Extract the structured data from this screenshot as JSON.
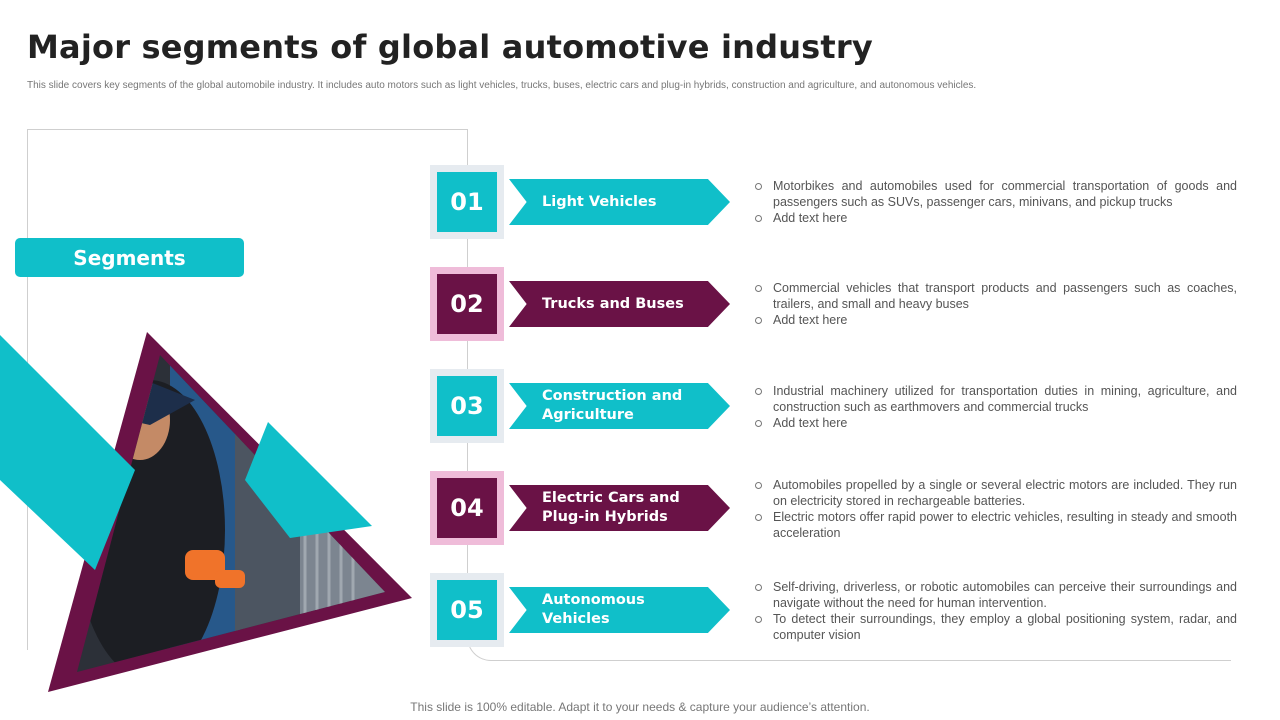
{
  "header": {
    "title": "Major segments of global automotive industry",
    "subtitle": "This slide covers key segments of the global automobile  industry. It includes auto motors such as light  vehicles, trucks, buses, electric cars and plug-in hybrids, construction and agriculture, and autonomous  vehicles."
  },
  "segments_label": "Segments",
  "colors": {
    "teal": "#10bfc9",
    "purple": "#6a1246",
    "pink": "#efbcd9",
    "light": "#e6ebf0"
  },
  "items": [
    {
      "num": "01",
      "label": "Light Vehicles",
      "color": "teal",
      "points": [
        "Motorbikes and automobiles used for commercial transportation of goods and passengers such as SUVs, passenger cars, minivans,  and pickup trucks",
        "Add text here"
      ]
    },
    {
      "num": "02",
      "label": "Trucks and Buses",
      "color": "purple",
      "points": [
        "Commercial vehicles that transport products and passengers such as coaches, trailers,  and  small and heavy  buses",
        "Add text here"
      ]
    },
    {
      "num": "03",
      "label": "Construction and Agriculture",
      "color": "teal",
      "points": [
        "Industrial machinery utilized for transportation duties in mining, agriculture, and construction such as earthmovers  and commercial trucks",
        "Add text here"
      ]
    },
    {
      "num": "04",
      "label": "Electric Cars and Plug-in Hybrids",
      "color": "purple",
      "points": [
        "Automobiles propelled  by a single  or several  electric motors are included. They run on electricity stored in rechargeable  batteries.",
        "Electric motors offer rapid power to electric vehicles,  resulting in steady and smooth acceleration"
      ]
    },
    {
      "num": "05",
      "label": "Autonomous Vehicles",
      "color": "teal",
      "points": [
        "Self-driving,  driverless,  or robotic automobiles can perceive  their surroundings and navigate without the need for human intervention.",
        " To detect their surroundings,  they employ a global positioning system, radar, and computer vision"
      ]
    }
  ],
  "footer": "This slide is 100% editable. Adapt it to your needs & capture your audience’s attention."
}
